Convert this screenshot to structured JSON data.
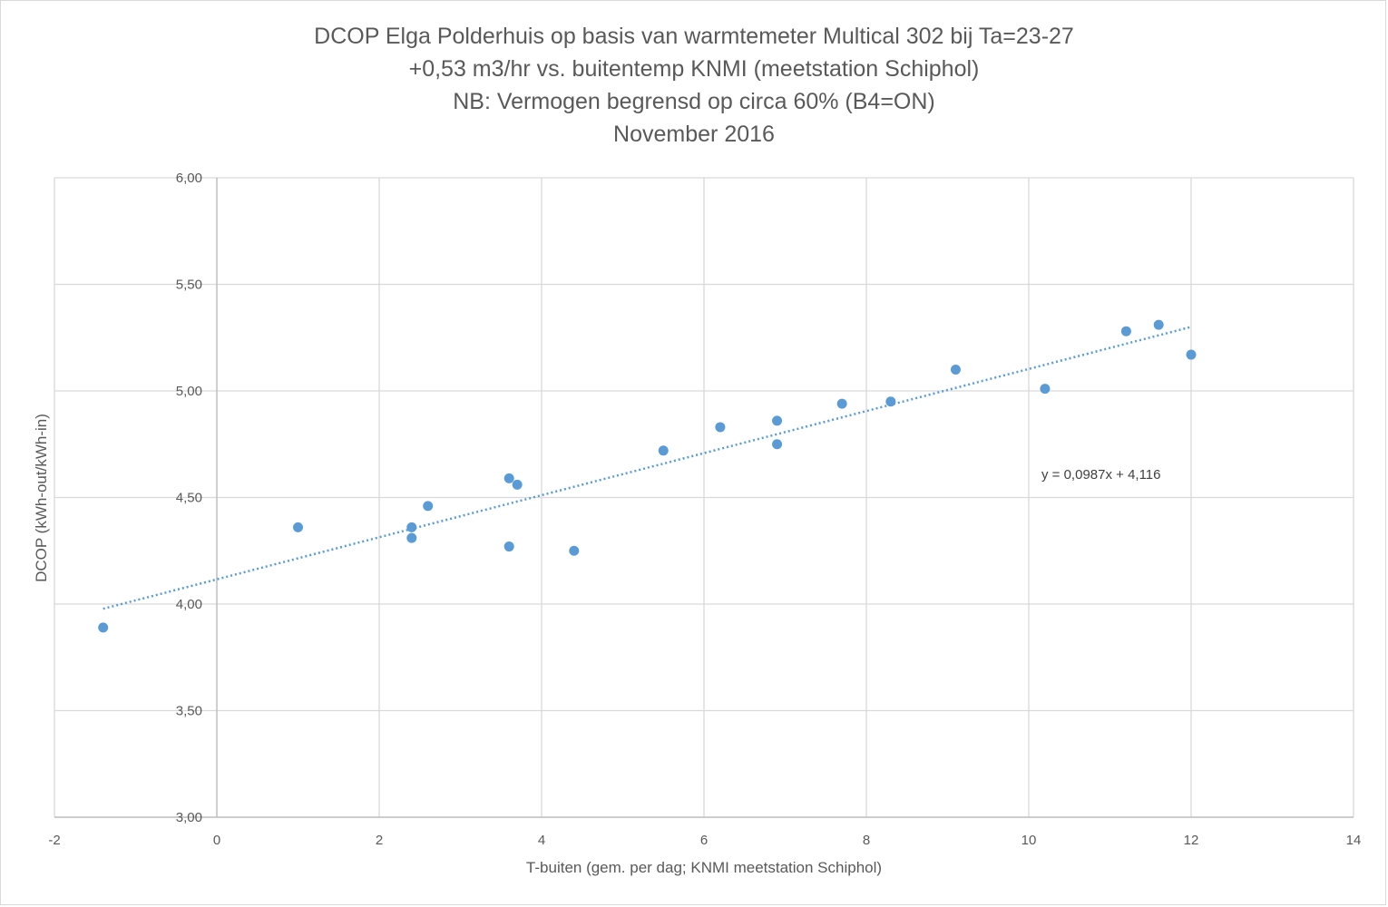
{
  "chart_data": {
    "type": "scatter",
    "title_lines": [
      "DCOP Elga Polderhuis op basis van warmtemeter Multical 302 bij Ta=23-27",
      "+0,53 m3/hr vs. buitentemp KNMI (meetstation Schiphol)",
      "NB: Vermogen begrensd op circa 60% (B4=ON)",
      "November 2016"
    ],
    "xlabel": "T-buiten (gem. per dag; KNMI meetstation Schiphol)",
    "ylabel": "DCOP (kWh-out/kWh-in)",
    "xlim": [
      -2,
      14
    ],
    "ylim": [
      3.0,
      6.0
    ],
    "x_ticks": [
      -2,
      0,
      2,
      4,
      6,
      8,
      10,
      12,
      14
    ],
    "y_ticks": [
      3.0,
      3.5,
      4.0,
      4.5,
      5.0,
      5.5,
      6.0
    ],
    "x_tick_labels": [
      "-2",
      "0",
      "2",
      "4",
      "6",
      "8",
      "10",
      "12",
      "14"
    ],
    "y_tick_labels": [
      "3,00",
      "3,50",
      "4,00",
      "4,50",
      "5,00",
      "5,50",
      "6,00"
    ],
    "grid": true,
    "legend": "none",
    "series": [
      {
        "color": "#5b9bd5",
        "points": [
          {
            "x": -1.4,
            "y": 3.89
          },
          {
            "x": 1.0,
            "y": 4.36
          },
          {
            "x": 2.4,
            "y": 4.36
          },
          {
            "x": 2.4,
            "y": 4.31
          },
          {
            "x": 2.6,
            "y": 4.46
          },
          {
            "x": 3.6,
            "y": 4.59
          },
          {
            "x": 3.7,
            "y": 4.56
          },
          {
            "x": 3.6,
            "y": 4.27
          },
          {
            "x": 4.4,
            "y": 4.25
          },
          {
            "x": 5.5,
            "y": 4.72
          },
          {
            "x": 6.2,
            "y": 4.83
          },
          {
            "x": 6.9,
            "y": 4.86
          },
          {
            "x": 6.9,
            "y": 4.75
          },
          {
            "x": 7.7,
            "y": 4.94
          },
          {
            "x": 8.3,
            "y": 4.95
          },
          {
            "x": 9.1,
            "y": 5.1
          },
          {
            "x": 10.2,
            "y": 5.01
          },
          {
            "x": 11.2,
            "y": 5.28
          },
          {
            "x": 11.6,
            "y": 5.31
          },
          {
            "x": 12.0,
            "y": 5.17
          }
        ]
      }
    ],
    "trendline": {
      "type": "linear",
      "slope": 0.0987,
      "intercept": 4.116,
      "x_range": [
        -1.4,
        12.0
      ],
      "equation_label": "y = 0,0987x + 4,116",
      "color": "#5b9bd5"
    }
  }
}
